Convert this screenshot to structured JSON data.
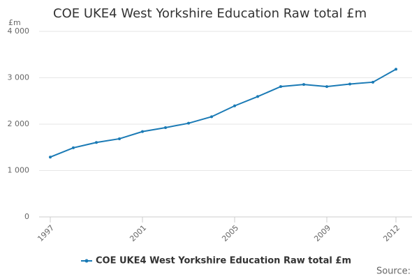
{
  "chart_data": {
    "type": "line",
    "title": "COE UKE4 West Yorkshire Education Raw total £m",
    "y_unit": "£m",
    "source": "Source:",
    "x": [
      1997,
      1998,
      1999,
      2000,
      2001,
      2002,
      2003,
      2004,
      2005,
      2006,
      2007,
      2008,
      2009,
      2010,
      2011,
      2012
    ],
    "series": [
      {
        "name": "COE UKE4 West Yorkshire Education Raw total £m",
        "color": "#1a7ab5",
        "values": [
          1290,
          1490,
          1605,
          1685,
          1840,
          1925,
          2020,
          2160,
          2395,
          2595,
          2810,
          2855,
          2810,
          2865,
          2905,
          3185
        ]
      }
    ],
    "xlim": [
      1997,
      2012
    ],
    "xticks": [
      1997,
      2001,
      2005,
      2009,
      2012
    ],
    "ylim": [
      0,
      4000
    ],
    "yticks": [
      0,
      {
        "value": 1000,
        "label": "1 000"
      },
      {
        "value": 2000,
        "label": "2 000"
      },
      {
        "value": 3000,
        "label": "3 000"
      },
      {
        "value": 4000,
        "label": "4 000"
      }
    ],
    "grid": true
  }
}
